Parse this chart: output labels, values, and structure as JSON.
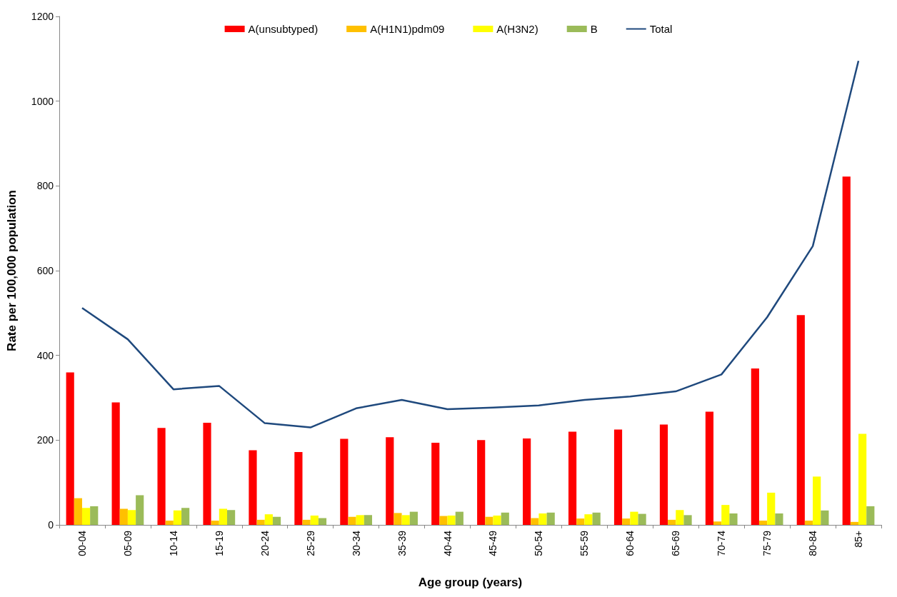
{
  "chart_data": {
    "type": "bar",
    "xlabel": "Age group (years)",
    "ylabel": "Rate per 100,000 population",
    "categories": [
      "00-04",
      "05-09",
      "10-14",
      "15-19",
      "20-24",
      "25-29",
      "30-34",
      "35-39",
      "40-44",
      "45-49",
      "50-54",
      "55-59",
      "60-64",
      "65-69",
      "70-74",
      "75-79",
      "80-84",
      "85+"
    ],
    "series": [
      {
        "name": "A(unsubtyped)",
        "color": "#ff0000",
        "values": [
          360,
          289,
          229,
          241,
          176,
          172,
          203,
          207,
          194,
          200,
          204,
          220,
          225,
          237,
          267,
          369,
          495,
          822
        ]
      },
      {
        "name": "A(H1N1)pdm09",
        "color": "#ffc000",
        "values": [
          63,
          38,
          10,
          10,
          12,
          12,
          19,
          28,
          21,
          19,
          16,
          15,
          15,
          12,
          8,
          10,
          10,
          7
        ]
      },
      {
        "name": "A(H3N2)",
        "color": "#ffff00",
        "values": [
          40,
          35,
          34,
          38,
          25,
          22,
          23,
          23,
          22,
          22,
          27,
          25,
          31,
          35,
          47,
          76,
          114,
          215
        ]
      },
      {
        "name": "B",
        "color": "#9bbb59",
        "values": [
          44,
          70,
          40,
          35,
          19,
          16,
          23,
          31,
          31,
          29,
          29,
          29,
          26,
          23,
          27,
          27,
          34,
          44
        ]
      },
      {
        "name": "Total",
        "type": "line",
        "color": "#1f497d",
        "marker": "none",
        "values": [
          512,
          438,
          320,
          328,
          240,
          230,
          275,
          295,
          273,
          277,
          282,
          295,
          303,
          315,
          355,
          490,
          658,
          1095
        ]
      }
    ],
    "ylim": [
      0,
      1200
    ],
    "yticks": [
      0,
      200,
      400,
      600,
      800,
      1000,
      1200
    ],
    "grid": false,
    "legend": "top"
  }
}
